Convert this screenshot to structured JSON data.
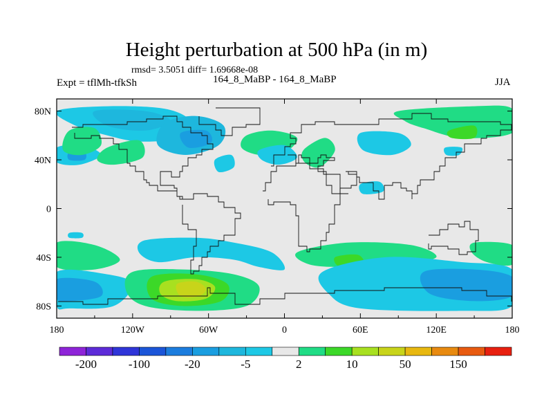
{
  "chart_data": {
    "type": "heatmap",
    "title": "Height perturbation at 500 hPa (in m)",
    "stats": "rmsd= 3.5051 diff= 1.69668e-08",
    "left_label": "Expt = tflMh-tfkSh",
    "center_label": "164_8_MaBP - 164_8_MaBP",
    "right_label": "JJA",
    "x_ticks": [
      "180",
      "120W",
      "60W",
      "0",
      "60E",
      "120E",
      "180"
    ],
    "x_tick_values": [
      -180,
      -120,
      -60,
      0,
      60,
      120,
      180
    ],
    "y_ticks": [
      "80N",
      "40N",
      "0",
      "40S",
      "80S"
    ],
    "y_tick_values": [
      80,
      40,
      0,
      -40,
      -80
    ],
    "xlim": [
      -180,
      180
    ],
    "ylim": [
      -90,
      90
    ],
    "colorbar": {
      "labels": [
        "-200",
        "-100",
        "-20",
        "-5",
        "2",
        "10",
        "50",
        "150"
      ],
      "colors": [
        "#8e24d8",
        "#5d2bd8",
        "#2f35d8",
        "#1b55d8",
        "#1c7dde",
        "#1a9ee0",
        "#1eb7dd",
        "#1dc8e5",
        "#e8e8e8",
        "#20dc85",
        "#3cd828",
        "#a8e020",
        "#c8d41a",
        "#e8b810",
        "#e88a10",
        "#e85a10",
        "#e82010"
      ]
    },
    "features": [
      {
        "name": "blob-arctic-west-a",
        "level": -5,
        "color": "#1dc8e5",
        "pts": [
          [
            -180,
            80
          ],
          [
            -140,
            84
          ],
          [
            -95,
            82
          ],
          [
            -75,
            72
          ],
          [
            -85,
            58
          ],
          [
            -115,
            55
          ],
          [
            -140,
            60
          ],
          [
            -165,
            68
          ]
        ]
      },
      {
        "name": "blob-arctic-west-b",
        "level": -20,
        "color": "#1eb7dd",
        "pts": [
          [
            -150,
            80
          ],
          [
            -110,
            80
          ],
          [
            -90,
            72
          ],
          [
            -110,
            64
          ],
          [
            -140,
            68
          ]
        ]
      },
      {
        "name": "blob-greenland",
        "level": -20,
        "color": "#1eb7dd",
        "pts": [
          [
            -95,
            70
          ],
          [
            -70,
            76
          ],
          [
            -48,
            68
          ],
          [
            -52,
            52
          ],
          [
            -78,
            44
          ],
          [
            -100,
            52
          ]
        ]
      },
      {
        "name": "blob-greenland-core",
        "level": -100,
        "color": "#1a9ee0",
        "pts": [
          [
            -82,
            62
          ],
          [
            -62,
            64
          ],
          [
            -58,
            54
          ],
          [
            -76,
            50
          ]
        ]
      },
      {
        "name": "blob-pacific-n",
        "level": -5,
        "color": "#1dc8e5",
        "pts": [
          [
            -180,
            50
          ],
          [
            -160,
            52
          ],
          [
            -145,
            44
          ],
          0,
          [
            -162,
            36
          ],
          [
            -180,
            38
          ]
        ]
      },
      {
        "name": "blob-pacific-n-core",
        "level": -20,
        "color": "#1a9ee0",
        "pts": [
          [
            -170,
            46
          ],
          [
            -158,
            46
          ],
          [
            -158,
            40
          ],
          [
            -170,
            40
          ]
        ]
      },
      {
        "name": "blob-atl-nw",
        "level": 10,
        "color": "#20dc85",
        "pts": [
          [
            -170,
            64
          ],
          [
            -150,
            66
          ],
          [
            -145,
            52
          ],
          [
            -160,
            44
          ],
          [
            -175,
            48
          ]
        ]
      },
      {
        "name": "blob-atl-mid",
        "level": 10,
        "color": "#20dc85",
        "pts": [
          [
            -140,
            50
          ],
          [
            -115,
            56
          ],
          [
            -112,
            42
          ],
          [
            -135,
            36
          ],
          [
            -148,
            40
          ]
        ]
      },
      {
        "name": "blob-atlantic-n",
        "level": 10,
        "color": "#20dc85",
        "pts": [
          [
            -30,
            60
          ],
          [
            -10,
            64
          ],
          [
            10,
            58
          ],
          [
            0,
            46
          ],
          [
            -20,
            44
          ],
          [
            -34,
            50
          ]
        ]
      },
      {
        "name": "blob-europe",
        "level": -5,
        "color": "#1dc8e5",
        "pts": [
          [
            -20,
            48
          ],
          [
            0,
            52
          ],
          [
            10,
            42
          ],
          [
            -4,
            36
          ],
          [
            -18,
            40
          ]
        ]
      },
      {
        "name": "blob-atl-sub",
        "level": -5,
        "color": "#1dc8e5",
        "pts": [
          [
            -55,
            40
          ],
          [
            -42,
            44
          ],
          [
            -40,
            34
          ],
          [
            -52,
            30
          ]
        ]
      },
      {
        "name": "blob-med",
        "level": 10,
        "color": "#20dc85",
        "pts": [
          [
            15,
            48
          ],
          [
            32,
            58
          ],
          [
            40,
            48
          ],
          [
            28,
            34
          ],
          [
            16,
            38
          ]
        ]
      },
      {
        "name": "blob-siberia",
        "level": -5,
        "color": "#1dc8e5",
        "pts": [
          [
            60,
            62
          ],
          [
            90,
            62
          ],
          [
            100,
            52
          ],
          [
            85,
            44
          ],
          [
            62,
            48
          ]
        ]
      },
      {
        "name": "blob-eurasia-ne",
        "level": 10,
        "color": "#20dc85",
        "pts": [
          [
            90,
            80
          ],
          [
            150,
            84
          ],
          [
            180,
            82
          ],
          [
            180,
            62
          ],
          [
            140,
            58
          ],
          [
            110,
            66
          ],
          [
            95,
            72
          ]
        ]
      },
      {
        "name": "blob-eurasia-ne-core",
        "level": 50,
        "color": "#3cd828",
        "pts": [
          [
            130,
            64
          ],
          [
            150,
            68
          ],
          [
            150,
            58
          ],
          [
            132,
            58
          ]
        ]
      },
      {
        "name": "blob-china",
        "level": -5,
        "color": "#1dc8e5",
        "pts": [
          [
            60,
            20
          ],
          [
            75,
            22
          ],
          [
            78,
            14
          ],
          [
            62,
            12
          ]
        ]
      },
      {
        "name": "blob-pac-small",
        "level": -5,
        "color": "#1dc8e5",
        "pts": [
          [
            127,
            50
          ],
          [
            140,
            50
          ],
          [
            138,
            44
          ],
          [
            128,
            44
          ]
        ]
      },
      {
        "name": "blob-south-w1",
        "level": 10,
        "color": "#20dc85",
        "pts": [
          [
            -180,
            -28
          ],
          [
            -150,
            -30
          ],
          [
            -130,
            -42
          ],
          [
            -150,
            -50
          ],
          [
            -180,
            -48
          ]
        ]
      },
      {
        "name": "blob-south-w2",
        "level": -5,
        "color": "#1dc8e5",
        "pts": [
          [
            -180,
            -52
          ],
          [
            -140,
            -54
          ],
          [
            -120,
            -62
          ],
          [
            -135,
            -80
          ],
          [
            -170,
            -82
          ],
          [
            -180,
            -80
          ]
        ]
      },
      {
        "name": "blob-south-w2-core",
        "level": -20,
        "color": "#1a9ee0",
        "pts": [
          [
            -180,
            -58
          ],
          [
            -150,
            -60
          ],
          [
            -145,
            -72
          ],
          [
            -170,
            -76
          ],
          [
            -180,
            -74
          ]
        ]
      },
      {
        "name": "blob-south-center",
        "level": -5,
        "color": "#1dc8e5",
        "pts": [
          [
            -110,
            -26
          ],
          [
            -70,
            -24
          ],
          [
            -40,
            -28
          ],
          [
            -10,
            -36
          ],
          [
            0,
            -50
          ],
          [
            -20,
            -48
          ],
          [
            -40,
            -42
          ],
          [
            -70,
            -40
          ],
          [
            -100,
            -44
          ],
          [
            -115,
            -36
          ]
        ]
      },
      {
        "name": "blob-south-big",
        "level": 10,
        "color": "#20dc85",
        "pts": [
          [
            -120,
            -52
          ],
          [
            -80,
            -50
          ],
          [
            -40,
            -54
          ],
          [
            -20,
            -64
          ],
          [
            -30,
            -80
          ],
          [
            -70,
            -84
          ],
          [
            -110,
            -80
          ],
          [
            -125,
            -68
          ]
        ]
      },
      {
        "name": "blob-south-big-2",
        "level": 50,
        "color": "#3cd828",
        "pts": [
          [
            -105,
            -56
          ],
          [
            -70,
            -54
          ],
          [
            -45,
            -62
          ],
          [
            -50,
            -76
          ],
          [
            -80,
            -80
          ],
          [
            -105,
            -74
          ]
        ]
      },
      {
        "name": "blob-south-big-3",
        "level": 100,
        "color": "#a8e020",
        "pts": [
          [
            -95,
            -60
          ],
          [
            -70,
            -58
          ],
          [
            -55,
            -64
          ],
          [
            -62,
            -74
          ],
          [
            -85,
            -76
          ],
          [
            -98,
            -70
          ]
        ]
      },
      {
        "name": "blob-south-big-4",
        "level": 150,
        "color": "#c8d41a",
        "pts": [
          [
            -85,
            -62
          ],
          [
            -70,
            -60
          ],
          [
            -62,
            -66
          ],
          [
            -68,
            -72
          ],
          [
            -82,
            -72
          ]
        ]
      },
      {
        "name": "blob-south-e1",
        "level": 10,
        "color": "#20dc85",
        "pts": [
          [
            10,
            -36
          ],
          [
            50,
            -28
          ],
          [
            100,
            -30
          ],
          [
            120,
            -40
          ],
          [
            90,
            -46
          ],
          [
            50,
            -48
          ],
          [
            20,
            -46
          ]
        ]
      },
      {
        "name": "blob-south-e1-core",
        "level": 50,
        "color": "#3cd828",
        "pts": [
          [
            40,
            -40
          ],
          [
            58,
            -38
          ],
          [
            62,
            -46
          ],
          [
            44,
            -48
          ]
        ]
      },
      {
        "name": "blob-south-e2",
        "level": -5,
        "color": "#1dc8e5",
        "pts": [
          [
            30,
            -52
          ],
          [
            80,
            -40
          ],
          [
            140,
            -44
          ],
          [
            180,
            -50
          ],
          [
            180,
            -80
          ],
          [
            140,
            -84
          ],
          [
            60,
            -82
          ],
          [
            35,
            -70
          ]
        ]
      },
      {
        "name": "blob-south-e2-core",
        "level": -20,
        "color": "#1a9ee0",
        "pts": [
          [
            110,
            -52
          ],
          [
            150,
            -50
          ],
          [
            180,
            -56
          ],
          [
            180,
            -72
          ],
          [
            150,
            -76
          ],
          [
            115,
            -70
          ]
        ]
      },
      {
        "name": "blob-south-e3",
        "level": 10,
        "color": "#20dc85",
        "pts": [
          [
            150,
            -28
          ],
          [
            180,
            -30
          ],
          [
            180,
            -46
          ],
          [
            160,
            -44
          ],
          [
            148,
            -36
          ]
        ]
      },
      {
        "name": "blob-pac-s-small",
        "level": -5,
        "color": "#1dc8e5",
        "pts": [
          [
            -170,
            -20
          ],
          [
            -160,
            -20
          ],
          [
            -160,
            -24
          ],
          [
            -170,
            -24
          ]
        ]
      }
    ]
  }
}
